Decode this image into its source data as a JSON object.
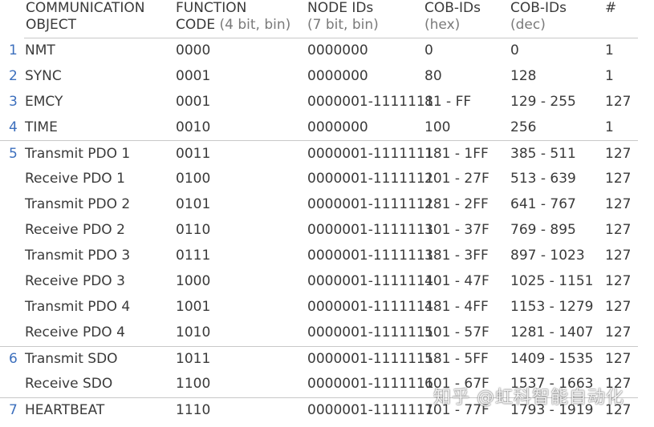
{
  "headers": {
    "object": {
      "line1": "COMMUNICATION",
      "line2": "OBJECT"
    },
    "function_code": {
      "line1": "FUNCTION",
      "line2_main": "CODE",
      "line2_sub": " (4 bit, bin)"
    },
    "node_ids": {
      "line1": "NODE IDs",
      "line2": "(7 bit, bin)"
    },
    "cob_hex": {
      "line1": "COB-IDs",
      "line2": "(hex)"
    },
    "cob_dec": {
      "line1": "COB-IDs",
      "line2": "(dec)"
    },
    "count": {
      "line1": "#"
    }
  },
  "rows": [
    {
      "group": "1",
      "object": "NMT",
      "function_code": "0000",
      "node_ids": "0000000",
      "cob_hex": "0",
      "cob_dec": "0",
      "count": "1"
    },
    {
      "group": "2",
      "object": "SYNC",
      "function_code": "0001",
      "node_ids": "0000000",
      "cob_hex": "80",
      "cob_dec": "128",
      "count": "1"
    },
    {
      "group": "3",
      "object": "EMCY",
      "function_code": "0001",
      "node_ids": "0000001-1111111",
      "cob_hex": "81 - FF",
      "cob_dec": "129 - 255",
      "count": "127"
    },
    {
      "group": "4",
      "object": "TIME",
      "function_code": "0010",
      "node_ids": "0000000",
      "cob_hex": "100",
      "cob_dec": "256",
      "count": "1"
    },
    {
      "group": "5",
      "object": "Transmit PDO 1",
      "function_code": "0011",
      "node_ids": "0000001-1111111",
      "cob_hex": "181 - 1FF",
      "cob_dec": "385 - 511",
      "count": "127"
    },
    {
      "group": "",
      "object": "Receive PDO 1",
      "function_code": "0100",
      "node_ids": "0000001-1111111",
      "cob_hex": "201 - 27F",
      "cob_dec": "513 - 639",
      "count": "127"
    },
    {
      "group": "",
      "object": "Transmit PDO 2",
      "function_code": "0101",
      "node_ids": "0000001-1111111",
      "cob_hex": "281 - 2FF",
      "cob_dec": "641 - 767",
      "count": "127"
    },
    {
      "group": "",
      "object": "Receive PDO 2",
      "function_code": "0110",
      "node_ids": "0000001-1111111",
      "cob_hex": "301 - 37F",
      "cob_dec": "769 - 895",
      "count": "127"
    },
    {
      "group": "",
      "object": "Transmit PDO 3",
      "function_code": "0111",
      "node_ids": "0000001-1111111",
      "cob_hex": "381 - 3FF",
      "cob_dec": "897 - 1023",
      "count": "127"
    },
    {
      "group": "",
      "object": "Receive PDO 3",
      "function_code": "1000",
      "node_ids": "0000001-1111111",
      "cob_hex": "401 - 47F",
      "cob_dec": "1025 - 1151",
      "count": "127"
    },
    {
      "group": "",
      "object": "Transmit PDO 4",
      "function_code": "1001",
      "node_ids": "0000001-1111111",
      "cob_hex": "481 - 4FF",
      "cob_dec": "1153 - 1279",
      "count": "127"
    },
    {
      "group": "",
      "object": "Receive PDO 4",
      "function_code": "1010",
      "node_ids": "0000001-1111111",
      "cob_hex": "501 - 57F",
      "cob_dec": "1281 - 1407",
      "count": "127"
    },
    {
      "group": "6",
      "object": "Transmit SDO",
      "function_code": "1011",
      "node_ids": "0000001-1111111",
      "cob_hex": "581 - 5FF",
      "cob_dec": "1409 - 1535",
      "count": "127"
    },
    {
      "group": "",
      "object": "Receive SDO",
      "function_code": "1100",
      "node_ids": "0000001-1111111",
      "cob_hex": "601 - 67F",
      "cob_dec": "1537 - 1663",
      "count": "127"
    },
    {
      "group": "7",
      "object": "HEARTBEAT",
      "function_code": "1110",
      "node_ids": "0000001-1111111",
      "cob_hex": "701 - 77F",
      "cob_dec": "1793 - 1919",
      "count": "127"
    }
  ],
  "watermark": "知乎 @虹科智能自动化",
  "colors": {
    "group_number": "#3c6fbd",
    "text": "#3a3a3a",
    "rule": "#c8c8c8"
  }
}
